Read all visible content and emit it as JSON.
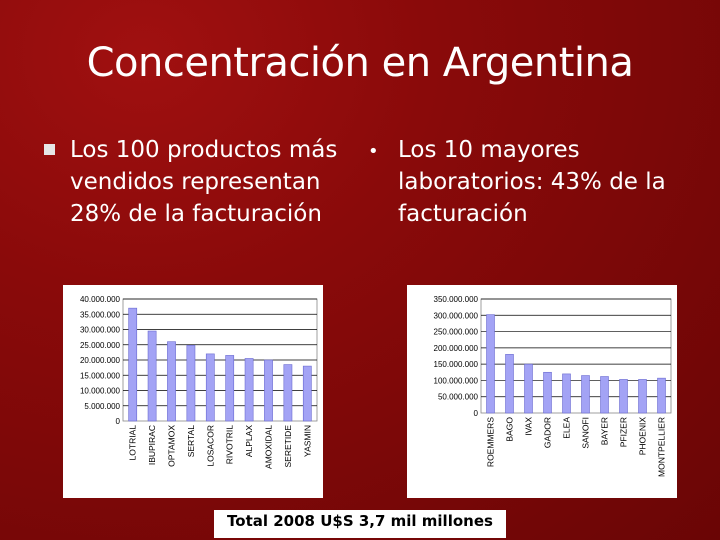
{
  "slide": {
    "title": "Concentración en Argentina",
    "left_bullet": "Los 100 productos más vendidos representan 28% de la facturación",
    "right_bullet": "Los 10 mayores laboratorios: 43% de la facturación",
    "footer": "Total 2008 U$S 3,7 mil millones"
  },
  "colors": {
    "bar_fill": "#a3a3f5",
    "bar_stroke": "#6a6ad0",
    "plot_bg": "#ffffff"
  },
  "chart_data": [
    {
      "type": "bar",
      "categories": [
        "LOTRIAL",
        "IBUPIRAC",
        "OPTAMOX",
        "SERTAL",
        "LOSACOR",
        "RIVOTRIL",
        "ALPLAX",
        "AMOXIDAL",
        "SERETIDE",
        "YASMIN"
      ],
      "values": [
        37000000,
        29500000,
        26000000,
        24800000,
        22000000,
        21500000,
        20500000,
        20000000,
        18500000,
        18000000
      ],
      "ylim": [
        0,
        40000000
      ],
      "yticks": [
        "0",
        "5.000.000",
        "10.000.000",
        "15.000.000",
        "20.000.000",
        "25.000.000",
        "30.000.000",
        "35.000.000",
        "40.000.000"
      ],
      "title": "",
      "xlabel": "",
      "ylabel": "",
      "grid": true
    },
    {
      "type": "bar",
      "categories": [
        "ROEMMERS",
        "BAGO",
        "IVAX",
        "GADOR",
        "ELEA",
        "SANOFI",
        "BAYER",
        "PFIZER",
        "PHOENIX",
        "MONTPELLIER"
      ],
      "values": [
        302000000,
        180000000,
        150000000,
        125000000,
        120000000,
        115000000,
        112000000,
        103000000,
        103000000,
        107000000
      ],
      "ylim": [
        0,
        350000000
      ],
      "yticks": [
        "0",
        "50.000.000",
        "100.000.000",
        "150.000.000",
        "200.000.000",
        "250.000.000",
        "300.000.000",
        "350.000.000"
      ],
      "title": "",
      "xlabel": "",
      "ylabel": "",
      "grid": true
    }
  ]
}
